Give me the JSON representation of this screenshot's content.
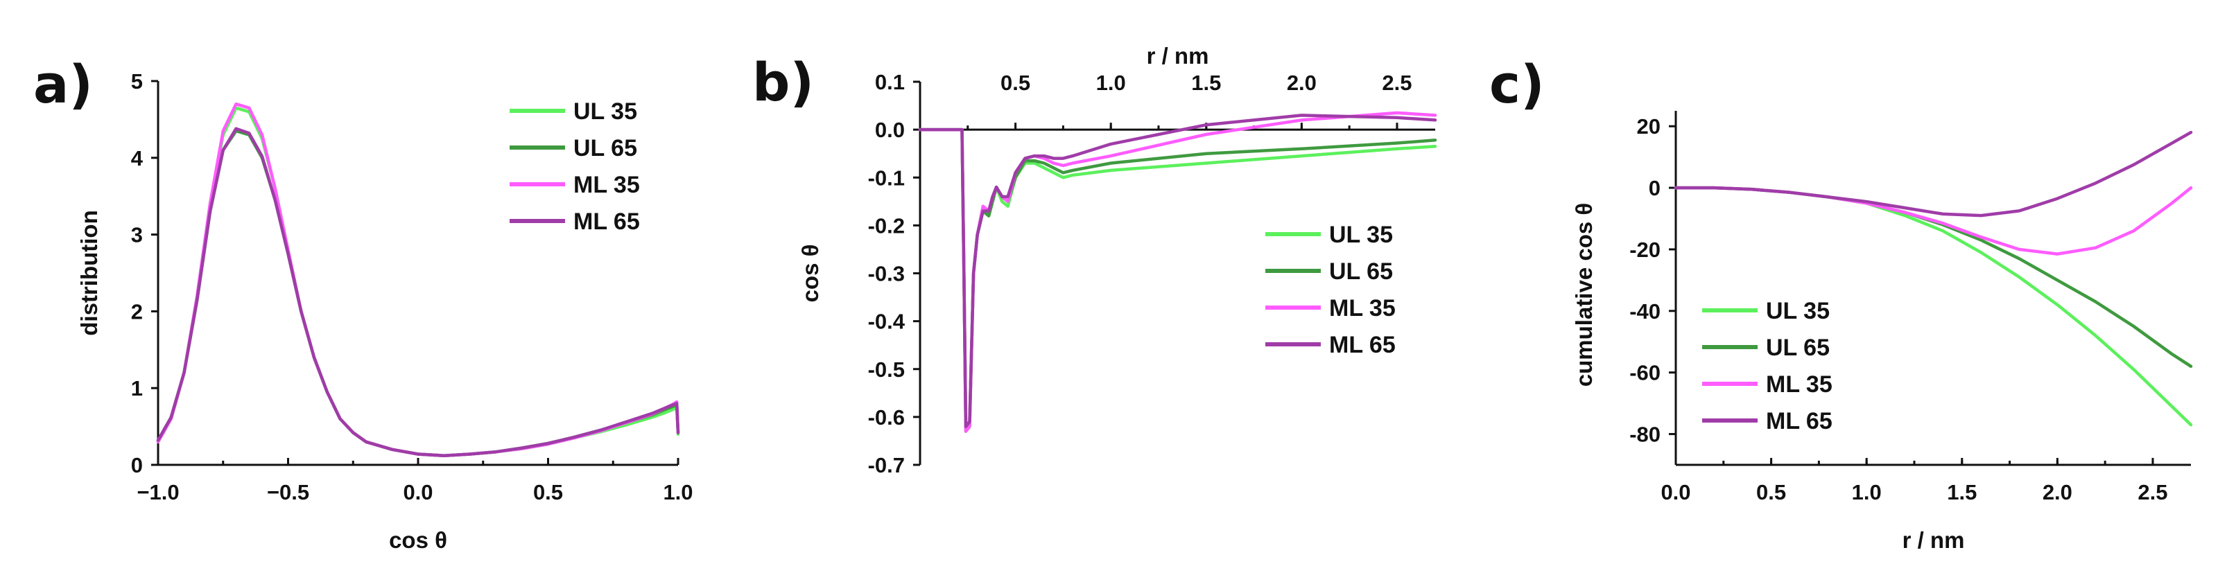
{
  "colors": {
    "UL 35": "#5cf05c",
    "UL 65": "#3f9a3f",
    "ML 35": "#ff5cff",
    "ML 65": "#a03ca8"
  },
  "chart_data": [
    {
      "panel": "a)",
      "type": "line",
      "xlabel": "cos θ",
      "ylabel": "distribution",
      "xlim": [
        -1.0,
        1.0
      ],
      "ylim": [
        0,
        5
      ],
      "xticks": [
        "−1.0",
        "−0.5",
        "0.0",
        "0.5",
        "1.0"
      ],
      "yticks": [
        "0",
        "1",
        "2",
        "3",
        "4",
        "5"
      ],
      "grid": false,
      "legend_position": "top-right",
      "series": [
        {
          "name": "UL 35",
          "x": [
            -1.0,
            -0.95,
            -0.9,
            -0.85,
            -0.8,
            -0.75,
            -0.7,
            -0.65,
            -0.6,
            -0.55,
            -0.5,
            -0.45,
            -0.4,
            -0.35,
            -0.3,
            -0.25,
            -0.2,
            -0.1,
            0.0,
            0.1,
            0.2,
            0.3,
            0.4,
            0.5,
            0.6,
            0.7,
            0.8,
            0.9,
            0.95,
            0.98,
            0.995,
            1.0
          ],
          "y": [
            0.3,
            0.6,
            1.2,
            2.2,
            3.4,
            4.3,
            4.65,
            4.6,
            4.25,
            3.6,
            2.8,
            2.0,
            1.4,
            0.95,
            0.6,
            0.42,
            0.3,
            0.2,
            0.14,
            0.12,
            0.14,
            0.17,
            0.21,
            0.27,
            0.35,
            0.43,
            0.52,
            0.62,
            0.68,
            0.72,
            0.75,
            0.4
          ]
        },
        {
          "name": "UL 65",
          "x": [
            -1.0,
            -0.95,
            -0.9,
            -0.85,
            -0.8,
            -0.75,
            -0.7,
            -0.65,
            -0.6,
            -0.55,
            -0.5,
            -0.45,
            -0.4,
            -0.35,
            -0.3,
            -0.25,
            -0.2,
            -0.1,
            0.0,
            0.1,
            0.2,
            0.3,
            0.4,
            0.5,
            0.6,
            0.7,
            0.8,
            0.9,
            0.95,
            0.98,
            0.995,
            1.0
          ],
          "y": [
            0.32,
            0.62,
            1.2,
            2.15,
            3.3,
            4.1,
            4.35,
            4.3,
            4.0,
            3.45,
            2.75,
            2.0,
            1.4,
            0.95,
            0.6,
            0.42,
            0.3,
            0.2,
            0.14,
            0.12,
            0.14,
            0.17,
            0.22,
            0.28,
            0.36,
            0.45,
            0.55,
            0.65,
            0.72,
            0.76,
            0.78,
            0.42
          ]
        },
        {
          "name": "ML 35",
          "x": [
            -1.0,
            -0.95,
            -0.9,
            -0.85,
            -0.8,
            -0.75,
            -0.7,
            -0.65,
            -0.6,
            -0.55,
            -0.5,
            -0.45,
            -0.4,
            -0.35,
            -0.3,
            -0.25,
            -0.2,
            -0.1,
            0.0,
            0.1,
            0.2,
            0.3,
            0.4,
            0.5,
            0.6,
            0.7,
            0.8,
            0.9,
            0.95,
            0.98,
            0.995,
            1.0
          ],
          "y": [
            0.3,
            0.6,
            1.2,
            2.2,
            3.4,
            4.35,
            4.7,
            4.65,
            4.3,
            3.6,
            2.8,
            2.0,
            1.4,
            0.95,
            0.6,
            0.42,
            0.3,
            0.2,
            0.14,
            0.12,
            0.14,
            0.17,
            0.21,
            0.27,
            0.35,
            0.44,
            0.55,
            0.66,
            0.74,
            0.79,
            0.82,
            0.42
          ]
        },
        {
          "name": "ML 65",
          "x": [
            -1.0,
            -0.95,
            -0.9,
            -0.85,
            -0.8,
            -0.75,
            -0.7,
            -0.65,
            -0.6,
            -0.55,
            -0.5,
            -0.45,
            -0.4,
            -0.35,
            -0.3,
            -0.25,
            -0.2,
            -0.1,
            0.0,
            0.1,
            0.2,
            0.3,
            0.4,
            0.5,
            0.6,
            0.7,
            0.8,
            0.9,
            0.95,
            0.98,
            0.995,
            1.0
          ],
          "y": [
            0.32,
            0.62,
            1.2,
            2.15,
            3.3,
            4.1,
            4.38,
            4.32,
            4.02,
            3.45,
            2.75,
            2.0,
            1.4,
            0.95,
            0.6,
            0.42,
            0.3,
            0.2,
            0.14,
            0.12,
            0.14,
            0.17,
            0.22,
            0.28,
            0.36,
            0.45,
            0.56,
            0.67,
            0.74,
            0.78,
            0.8,
            0.42
          ]
        }
      ]
    },
    {
      "panel": "b)",
      "type": "line",
      "xlabel": "r / nm",
      "ylabel": "cos θ",
      "xlim": [
        0.0,
        2.7
      ],
      "ylim": [
        -0.7,
        0.1
      ],
      "xticks": [
        "0.5",
        "1.0",
        "1.5",
        "2.0",
        "2.5"
      ],
      "yticks": [
        "0.1",
        "0.0",
        "-0.1",
        "-0.2",
        "-0.3",
        "-0.4",
        "-0.5",
        "-0.6",
        "-0.7"
      ],
      "x_axis_position": "top",
      "grid": false,
      "legend_position": "right",
      "series": [
        {
          "name": "UL 35",
          "x": [
            0.0,
            0.22,
            0.23,
            0.24,
            0.26,
            0.28,
            0.3,
            0.33,
            0.36,
            0.38,
            0.4,
            0.43,
            0.46,
            0.5,
            0.55,
            0.6,
            0.65,
            0.7,
            0.75,
            0.8,
            1.0,
            1.5,
            2.0,
            2.5,
            2.7
          ],
          "y": [
            0.0,
            0.0,
            -0.3,
            -0.63,
            -0.62,
            -0.3,
            -0.22,
            -0.16,
            -0.18,
            -0.15,
            -0.12,
            -0.15,
            -0.16,
            -0.1,
            -0.07,
            -0.07,
            -0.08,
            -0.09,
            -0.1,
            -0.095,
            -0.085,
            -0.07,
            -0.055,
            -0.04,
            -0.035
          ]
        },
        {
          "name": "UL 65",
          "x": [
            0.0,
            0.22,
            0.23,
            0.24,
            0.26,
            0.28,
            0.3,
            0.33,
            0.36,
            0.38,
            0.4,
            0.43,
            0.46,
            0.5,
            0.55,
            0.6,
            0.65,
            0.7,
            0.75,
            0.8,
            1.0,
            1.5,
            2.0,
            2.5,
            2.7
          ],
          "y": [
            0.0,
            0.0,
            -0.3,
            -0.62,
            -0.61,
            -0.3,
            -0.22,
            -0.17,
            -0.18,
            -0.15,
            -0.12,
            -0.14,
            -0.15,
            -0.1,
            -0.065,
            -0.065,
            -0.07,
            -0.08,
            -0.09,
            -0.085,
            -0.07,
            -0.05,
            -0.04,
            -0.028,
            -0.022
          ]
        },
        {
          "name": "ML 35",
          "x": [
            0.0,
            0.22,
            0.23,
            0.24,
            0.26,
            0.28,
            0.3,
            0.33,
            0.36,
            0.38,
            0.4,
            0.43,
            0.46,
            0.5,
            0.55,
            0.6,
            0.65,
            0.7,
            0.75,
            0.8,
            1.0,
            1.5,
            2.0,
            2.5,
            2.7
          ],
          "y": [
            0.0,
            0.0,
            -0.3,
            -0.63,
            -0.62,
            -0.3,
            -0.22,
            -0.16,
            -0.17,
            -0.14,
            -0.12,
            -0.14,
            -0.15,
            -0.09,
            -0.06,
            -0.055,
            -0.06,
            -0.07,
            -0.075,
            -0.07,
            -0.055,
            -0.01,
            0.02,
            0.035,
            0.03
          ]
        },
        {
          "name": "ML 65",
          "x": [
            0.0,
            0.22,
            0.23,
            0.24,
            0.26,
            0.28,
            0.3,
            0.33,
            0.36,
            0.38,
            0.4,
            0.43,
            0.46,
            0.5,
            0.55,
            0.6,
            0.65,
            0.7,
            0.75,
            0.8,
            1.0,
            1.5,
            2.0,
            2.5,
            2.7
          ],
          "y": [
            0.0,
            0.0,
            -0.3,
            -0.62,
            -0.61,
            -0.3,
            -0.22,
            -0.17,
            -0.17,
            -0.14,
            -0.12,
            -0.14,
            -0.14,
            -0.09,
            -0.06,
            -0.055,
            -0.055,
            -0.06,
            -0.06,
            -0.055,
            -0.03,
            0.01,
            0.03,
            0.025,
            0.02
          ]
        }
      ]
    },
    {
      "panel": "c)",
      "type": "line",
      "xlabel": "r / nm",
      "ylabel": "cumulative cos θ",
      "xlim": [
        0.0,
        2.7
      ],
      "ylim": [
        -90,
        25
      ],
      "xticks": [
        "0.0",
        "0.5",
        "1.0",
        "1.5",
        "2.0",
        "2.5"
      ],
      "yticks": [
        "20",
        "0",
        "-20",
        "-40",
        "-60",
        "-80"
      ],
      "grid": false,
      "legend_position": "bottom-left",
      "series": [
        {
          "name": "UL 35",
          "x": [
            0.0,
            0.2,
            0.4,
            0.6,
            0.8,
            1.0,
            1.2,
            1.4,
            1.6,
            1.8,
            2.0,
            2.2,
            2.4,
            2.6,
            2.7
          ],
          "y": [
            0,
            0,
            -0.5,
            -1.5,
            -3,
            -5,
            -9,
            -14,
            -21,
            -29,
            -38,
            -48,
            -59,
            -71,
            -77
          ]
        },
        {
          "name": "UL 65",
          "x": [
            0.0,
            0.2,
            0.4,
            0.6,
            0.8,
            1.0,
            1.2,
            1.4,
            1.6,
            1.8,
            2.0,
            2.2,
            2.4,
            2.6,
            2.7
          ],
          "y": [
            0,
            0,
            -0.5,
            -1.5,
            -3,
            -5,
            -8,
            -12,
            -17,
            -23,
            -30,
            -37,
            -45,
            -54,
            -58
          ]
        },
        {
          "name": "ML 35",
          "x": [
            0.0,
            0.2,
            0.4,
            0.6,
            0.8,
            1.0,
            1.2,
            1.4,
            1.6,
            1.8,
            2.0,
            2.2,
            2.4,
            2.6,
            2.7
          ],
          "y": [
            0,
            0,
            -0.5,
            -1.5,
            -3,
            -5,
            -8,
            -11.5,
            -16,
            -20,
            -21.5,
            -19.5,
            -14,
            -5,
            0
          ]
        },
        {
          "name": "ML 65",
          "x": [
            0.0,
            0.2,
            0.4,
            0.6,
            0.8,
            1.0,
            1.2,
            1.4,
            1.6,
            1.8,
            2.0,
            2.2,
            2.4,
            2.6,
            2.7
          ],
          "y": [
            0,
            0,
            -0.5,
            -1.5,
            -3,
            -4.5,
            -6.5,
            -8.5,
            -9,
            -7.5,
            -3.5,
            1.5,
            7.5,
            14.5,
            18
          ]
        }
      ]
    }
  ]
}
